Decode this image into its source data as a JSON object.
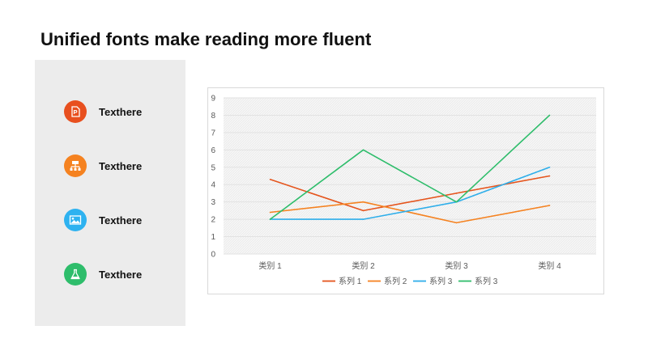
{
  "page": {
    "title": "Unified fonts make reading more fluent"
  },
  "side_panel": {
    "items": [
      {
        "label": "Texthere",
        "icon": "document-icon",
        "color": "#e8501f"
      },
      {
        "label": "Texthere",
        "icon": "org-chart-icon",
        "color": "#f58220"
      },
      {
        "label": "Texthere",
        "icon": "image-icon",
        "color": "#2eb2f0"
      },
      {
        "label": "Texthere",
        "icon": "flask-icon",
        "color": "#2ebd6b"
      }
    ]
  },
  "chart_data": {
    "type": "line",
    "categories": [
      "类别 1",
      "类别 2",
      "类别 3",
      "类别 4"
    ],
    "yticks": [
      "0",
      "1",
      "2",
      "3",
      "4",
      "5",
      "6",
      "7",
      "8",
      "9"
    ],
    "ylim": [
      0,
      9
    ],
    "grid": true,
    "legend_position": "bottom",
    "series": [
      {
        "name": "系列 1",
        "values": [
          4.3,
          2.5,
          3.5,
          4.5
        ],
        "color": "#e5541c"
      },
      {
        "name": "系列 2",
        "values": [
          2.4,
          3.0,
          1.8,
          2.8
        ],
        "color": "#f58220"
      },
      {
        "name": "系列 3",
        "values": [
          2.0,
          2.0,
          3.0,
          5.0
        ],
        "color": "#2eaeea"
      },
      {
        "name": "系列 3",
        "values": [
          2.0,
          6.0,
          3.0,
          8.0
        ],
        "color": "#2ebd6b"
      }
    ]
  }
}
